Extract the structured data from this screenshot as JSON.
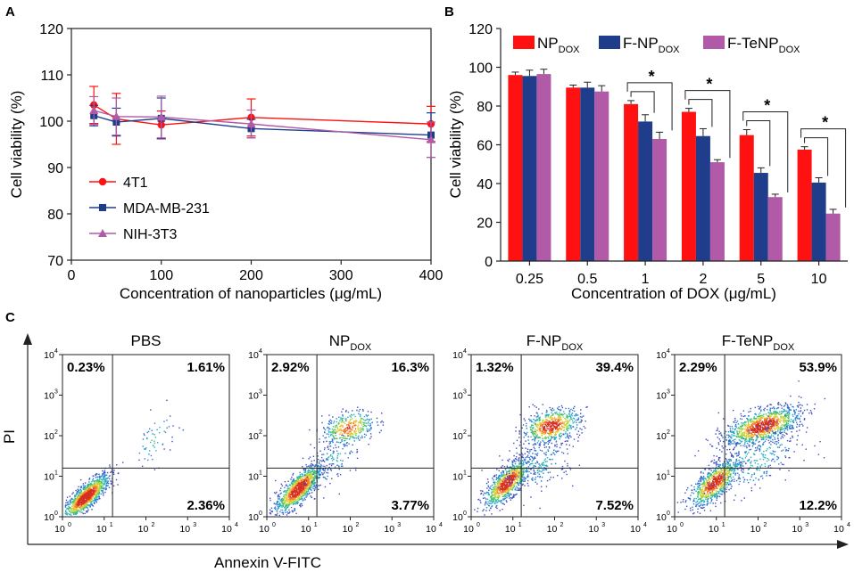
{
  "colors": {
    "red": "#ff1111",
    "blue": "#1f3d8a",
    "purple": "#b05aa8",
    "axis": "#222222"
  },
  "chart_data": [
    {
      "panel": "A",
      "type": "line",
      "xlabel": "Concentration of nanoparticles (μg/mL)",
      "ylabel": "Cell viability (%)",
      "xlim": [
        0,
        400
      ],
      "ylim": [
        70,
        120
      ],
      "xticks": [
        "0",
        "100",
        "200",
        "300",
        "400"
      ],
      "yticks": [
        "70",
        "80",
        "90",
        "100",
        "110",
        "120"
      ],
      "x": [
        25,
        50,
        100,
        200,
        400
      ],
      "legend_position": "bottom-left",
      "series": [
        {
          "name": "4T1",
          "color": "#ff1111",
          "marker": "circle",
          "values": [
            103.5,
            100.5,
            99.2,
            100.8,
            99.4
          ],
          "errors": [
            4.0,
            5.5,
            3.0,
            4.0,
            3.8
          ]
        },
        {
          "name": "MDA-MB-231",
          "color": "#1f3d8a",
          "marker": "square",
          "values": [
            101.2,
            99.8,
            100.6,
            98.4,
            97.0
          ],
          "errors": [
            2.2,
            3.0,
            4.4,
            2.0,
            4.8
          ]
        },
        {
          "name": "NIH-3T3",
          "color": "#b05aa8",
          "marker": "triangle",
          "values": [
            102.3,
            101.0,
            100.9,
            99.4,
            96.0
          ],
          "errors": [
            3.0,
            4.0,
            4.5,
            3.0,
            3.8
          ]
        }
      ]
    },
    {
      "panel": "B",
      "type": "bar",
      "xlabel": "Concentration of DOX (μg/mL)",
      "ylabel": "Cell viability (%)",
      "ylim": [
        0,
        120
      ],
      "yticks": [
        "0",
        "20",
        "40",
        "60",
        "80",
        "100",
        "120"
      ],
      "categories": [
        "0.25",
        "0.5",
        "1",
        "2",
        "5",
        "10"
      ],
      "legend_position": "top",
      "series": [
        {
          "name": "NP",
          "sub": "DOX",
          "color": "#ff1111",
          "values": [
            96,
            89.5,
            81,
            77,
            65,
            57.5
          ],
          "errors": [
            1.5,
            1.3,
            1.8,
            1.8,
            2.8,
            1.5
          ]
        },
        {
          "name": "F-NP",
          "sub": "DOX",
          "color": "#1f3d8a",
          "values": [
            95.5,
            89.5,
            72,
            64.5,
            45.5,
            40.5
          ],
          "errors": [
            3.0,
            2.8,
            3.5,
            3.8,
            2.6,
            2.5
          ]
        },
        {
          "name": "F-TeNP",
          "sub": "DOX",
          "color": "#b05aa8",
          "values": [
            96.5,
            87.5,
            63,
            51,
            33,
            24.5
          ],
          "errors": [
            2.5,
            3.0,
            3.5,
            1.3,
            1.5,
            2.2
          ]
        }
      ],
      "significance": [
        {
          "category": "1",
          "label": "*"
        },
        {
          "category": "2",
          "label": "*"
        },
        {
          "category": "5",
          "label": "*"
        },
        {
          "category": "10",
          "label": "*"
        }
      ]
    },
    {
      "panel": "C",
      "type": "scatter",
      "subtype": "flow-cytometry-density",
      "xlabel": "Annexin V-FITC",
      "ylabel": "PI",
      "tick_labels": [
        "10",
        "10",
        "10",
        "10",
        "10"
      ],
      "tick_exponents": [
        "0",
        "1",
        "2",
        "3",
        "4"
      ],
      "gate_position_log": [
        1.2,
        1.2
      ],
      "plots": [
        {
          "title": "PBS",
          "title_sub": "",
          "quadrants": {
            "top_left": "0.23%",
            "top_right": "1.61%",
            "bottom_right": "2.36%"
          }
        },
        {
          "title": "NP",
          "title_sub": "DOX",
          "quadrants": {
            "top_left": "2.92%",
            "top_right": "16.3%",
            "bottom_right": "3.77%"
          }
        },
        {
          "title": "F-NP",
          "title_sub": "DOX",
          "quadrants": {
            "top_left": "1.32%",
            "top_right": "39.4%",
            "bottom_right": "7.52%"
          }
        },
        {
          "title": "F-TeNP",
          "title_sub": "DOX",
          "quadrants": {
            "top_left": "2.29%",
            "top_right": "53.9%",
            "bottom_right": "12.2%"
          }
        }
      ]
    }
  ]
}
